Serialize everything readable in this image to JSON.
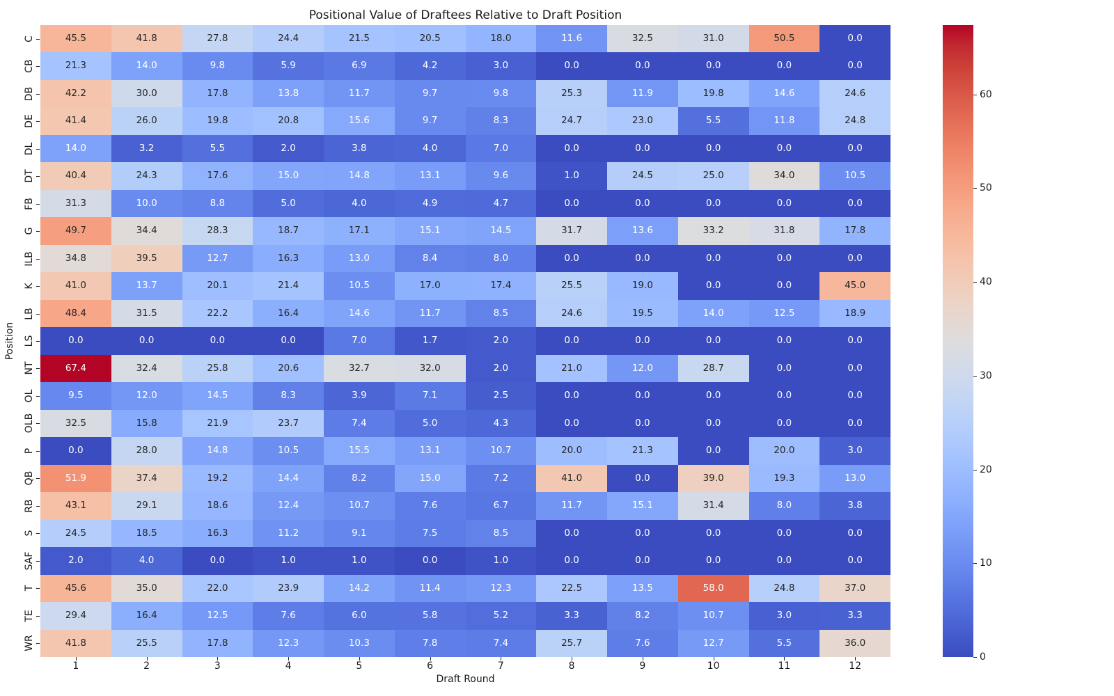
{
  "chart_data": {
    "type": "heatmap",
    "title": "Positional Value of Draftees Relative to Draft Position",
    "xlabel": "Draft Round",
    "ylabel": "Position",
    "x_categories": [
      "1",
      "2",
      "3",
      "4",
      "5",
      "6",
      "7",
      "8",
      "9",
      "10",
      "11",
      "12"
    ],
    "y_categories": [
      "C",
      "CB",
      "DB",
      "DE",
      "DL",
      "DT",
      "FB",
      "G",
      "ILB",
      "K",
      "LB",
      "LS",
      "NT",
      "OL",
      "OLB",
      "P",
      "QB",
      "RB",
      "S",
      "SAF",
      "T",
      "TE",
      "WR"
    ],
    "values": [
      [
        45.5,
        41.8,
        27.8,
        24.4,
        21.5,
        20.5,
        18.0,
        11.6,
        32.5,
        31.0,
        50.5,
        0.0
      ],
      [
        21.3,
        14.0,
        9.8,
        5.9,
        6.9,
        4.2,
        3.0,
        0.0,
        0.0,
        0.0,
        0.0,
        0.0
      ],
      [
        42.2,
        30.0,
        17.8,
        13.8,
        11.7,
        9.7,
        9.8,
        25.3,
        11.9,
        19.8,
        14.6,
        24.6
      ],
      [
        41.4,
        26.0,
        19.8,
        20.8,
        15.6,
        9.7,
        8.3,
        24.7,
        23.0,
        5.5,
        11.8,
        24.8
      ],
      [
        14.0,
        3.2,
        5.5,
        2.0,
        3.8,
        4.0,
        7.0,
        0.0,
        0.0,
        0.0,
        0.0,
        0.0
      ],
      [
        40.4,
        24.3,
        17.6,
        15.0,
        14.8,
        13.1,
        9.6,
        1.0,
        24.5,
        25.0,
        34.0,
        10.5
      ],
      [
        31.3,
        10.0,
        8.8,
        5.0,
        4.0,
        4.9,
        4.7,
        0.0,
        0.0,
        0.0,
        0.0,
        0.0
      ],
      [
        49.7,
        34.4,
        28.3,
        18.7,
        17.1,
        15.1,
        14.5,
        31.7,
        13.6,
        33.2,
        31.8,
        17.8
      ],
      [
        34.8,
        39.5,
        12.7,
        16.3,
        13.0,
        8.4,
        8.0,
        0.0,
        0.0,
        0.0,
        0.0,
        0.0
      ],
      [
        41.0,
        13.7,
        20.1,
        21.4,
        10.5,
        17.0,
        17.4,
        25.5,
        19.0,
        0.0,
        0.0,
        45.0
      ],
      [
        48.4,
        31.5,
        22.2,
        16.4,
        14.6,
        11.7,
        8.5,
        24.6,
        19.5,
        14.0,
        12.5,
        18.9
      ],
      [
        0.0,
        0.0,
        0.0,
        0.0,
        7.0,
        1.7,
        2.0,
        0.0,
        0.0,
        0.0,
        0.0,
        0.0
      ],
      [
        67.4,
        32.4,
        25.8,
        20.6,
        32.7,
        32.0,
        2.0,
        21.0,
        12.0,
        28.7,
        0.0,
        0.0
      ],
      [
        9.5,
        12.0,
        14.5,
        8.3,
        3.9,
        7.1,
        2.5,
        0.0,
        0.0,
        0.0,
        0.0,
        0.0
      ],
      [
        32.5,
        15.8,
        21.9,
        23.7,
        7.4,
        5.0,
        4.3,
        0.0,
        0.0,
        0.0,
        0.0,
        0.0
      ],
      [
        0.0,
        28.0,
        14.8,
        10.5,
        15.5,
        13.1,
        10.7,
        20.0,
        21.3,
        0.0,
        20.0,
        3.0
      ],
      [
        51.9,
        37.4,
        19.2,
        14.4,
        8.2,
        15.0,
        7.2,
        41.0,
        0.0,
        39.0,
        19.3,
        13.0
      ],
      [
        43.1,
        29.1,
        18.6,
        12.4,
        10.7,
        7.6,
        6.7,
        11.7,
        15.1,
        31.4,
        8.0,
        3.8
      ],
      [
        24.5,
        18.5,
        16.3,
        11.2,
        9.1,
        7.5,
        8.5,
        0.0,
        0.0,
        0.0,
        0.0,
        0.0
      ],
      [
        2.0,
        4.0,
        0.0,
        1.0,
        1.0,
        0.0,
        1.0,
        0.0,
        0.0,
        0.0,
        0.0,
        0.0
      ],
      [
        45.6,
        35.0,
        22.0,
        23.9,
        14.2,
        11.4,
        12.3,
        22.5,
        13.5,
        58.0,
        24.8,
        37.0
      ],
      [
        29.4,
        16.4,
        12.5,
        7.6,
        6.0,
        5.8,
        5.2,
        3.3,
        8.2,
        10.7,
        3.0,
        3.3
      ],
      [
        41.8,
        25.5,
        17.8,
        12.3,
        10.3,
        7.8,
        7.4,
        25.7,
        7.6,
        12.7,
        5.5,
        36.0
      ]
    ],
    "vmin": 0.0,
    "vmax": 67.4,
    "colormap": "coolwarm",
    "colorbar_ticks": [
      0,
      10,
      20,
      30,
      40,
      50,
      60
    ],
    "annotation_text_dark": "#262626",
    "annotation_text_light": "#ffffff",
    "legend_position": "right-colorbar",
    "grid": false,
    "annotation_format": "0.1f"
  }
}
